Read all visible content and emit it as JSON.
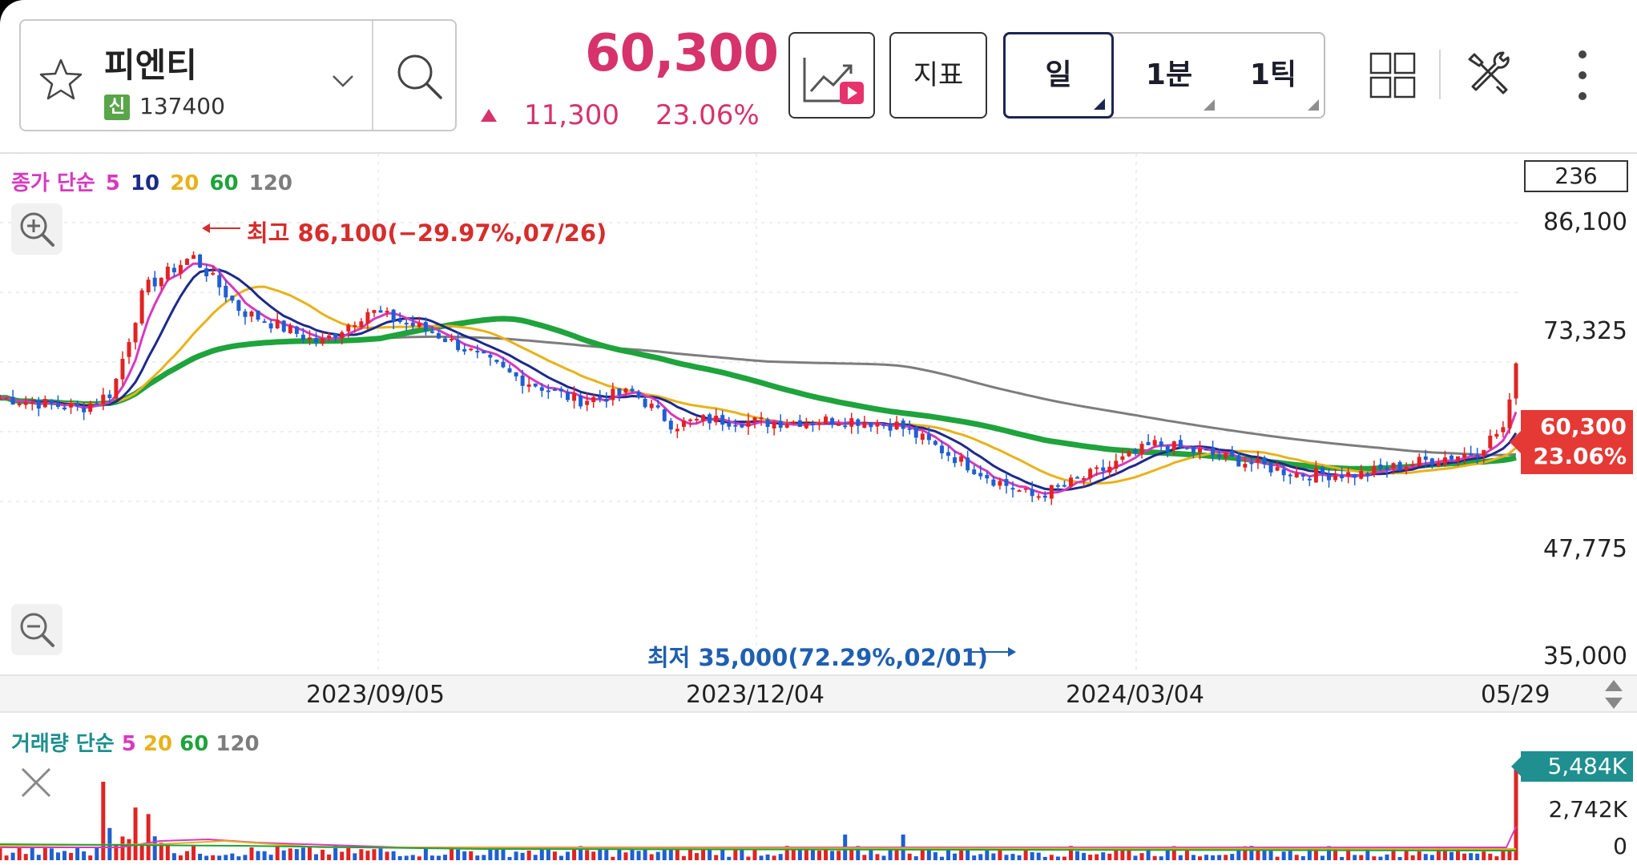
{
  "header": {
    "stock_name": "피엔티",
    "badge": "신",
    "stock_code": "137400",
    "price": "60,300",
    "change": "11,300",
    "change_pct": "23.06%",
    "indicator_label": "지표",
    "periods": [
      "일",
      "1분",
      "1틱"
    ]
  },
  "chart": {
    "ma_legend": {
      "prefix": "종가 단순",
      "periods": [
        "5",
        "10",
        "20",
        "60",
        "120"
      ]
    },
    "count": "236",
    "price_ticks": [
      "86,100",
      "73,325",
      "47,775",
      "35,000"
    ],
    "current_price": "60,300",
    "current_pct": "23.06%",
    "high_label": "최고 86,100(−29.97%,07/26)",
    "low_label": "최저 35,000(72.29%,02/01)",
    "dates": [
      "2023/09/05",
      "2023/12/04",
      "2024/03/04",
      "05/29"
    ]
  },
  "volume": {
    "legend": {
      "prefix": "거래량 단순",
      "periods": [
        "5",
        "20",
        "60",
        "120"
      ]
    },
    "tag": "5,484K",
    "ticks": [
      "2,742K",
      "0"
    ]
  },
  "colors": {
    "up": "#e02424",
    "down": "#1f5fd0",
    "ma5": "#d63ac0",
    "ma10": "#1d2a8a",
    "ma20": "#e8b21a",
    "ma60": "#1fa33c",
    "ma120": "#7d7d7d",
    "accent": "#d6336c"
  }
}
